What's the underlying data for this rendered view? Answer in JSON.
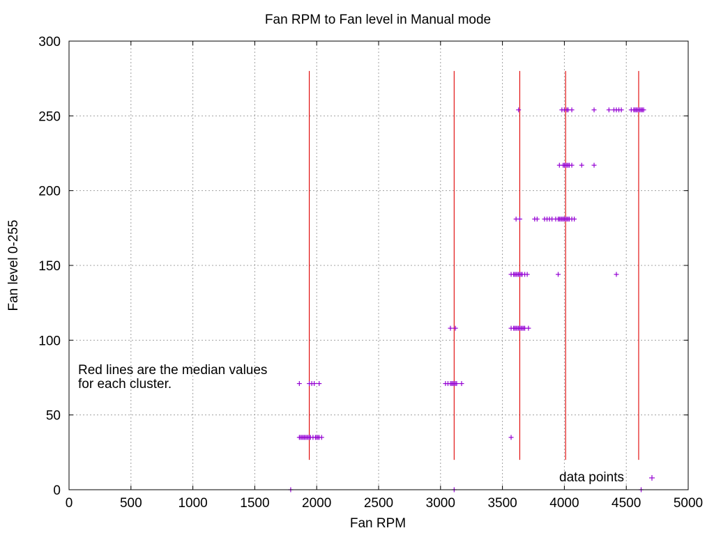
{
  "chart_data": {
    "type": "scatter",
    "title": "Fan RPM to Fan level in Manual mode",
    "xlabel": "Fan RPM",
    "ylabel": "Fan level 0-255",
    "xlim": [
      0,
      5000
    ],
    "ylim": [
      0,
      300
    ],
    "xticks": [
      0,
      500,
      1000,
      1500,
      2000,
      2500,
      3000,
      3500,
      4000,
      4500,
      5000
    ],
    "yticks": [
      0,
      50,
      100,
      150,
      200,
      250,
      300
    ],
    "grid": true,
    "legend": {
      "position": "bottom-right",
      "entries": [
        {
          "label": "data points",
          "marker": "+",
          "color": "#9400d3"
        }
      ]
    },
    "annotation": [
      "Red lines are the median values",
      "for each cluster."
    ],
    "colors": {
      "points": "#9400d3",
      "median_lines": "#e00000",
      "grid": "#a0a0a0"
    },
    "median_lines": {
      "x": [
        1940,
        3110,
        3640,
        4010,
        4600
      ],
      "y_range": [
        20,
        280
      ]
    },
    "series": [
      {
        "name": "data points",
        "points": [
          [
            1860,
            35
          ],
          [
            1870,
            35
          ],
          [
            1880,
            35
          ],
          [
            1890,
            35
          ],
          [
            1900,
            35
          ],
          [
            1910,
            35
          ],
          [
            1920,
            35
          ],
          [
            1930,
            35
          ],
          [
            1940,
            35
          ],
          [
            1950,
            35
          ],
          [
            1970,
            35
          ],
          [
            1990,
            35
          ],
          [
            2000,
            35
          ],
          [
            2010,
            35
          ],
          [
            2020,
            35
          ],
          [
            2040,
            35
          ],
          [
            1860,
            71
          ],
          [
            1940,
            71
          ],
          [
            1960,
            71
          ],
          [
            1980,
            71
          ],
          [
            2020,
            71
          ],
          [
            3040,
            71
          ],
          [
            3060,
            71
          ],
          [
            3080,
            71
          ],
          [
            3090,
            71
          ],
          [
            3100,
            71
          ],
          [
            3110,
            71
          ],
          [
            3120,
            71
          ],
          [
            3130,
            71
          ],
          [
            3170,
            71
          ],
          [
            3080,
            108
          ],
          [
            3120,
            108
          ],
          [
            3570,
            108
          ],
          [
            3590,
            108
          ],
          [
            3600,
            108
          ],
          [
            3610,
            108
          ],
          [
            3620,
            108
          ],
          [
            3630,
            108
          ],
          [
            3640,
            108
          ],
          [
            3650,
            108
          ],
          [
            3660,
            108
          ],
          [
            3670,
            108
          ],
          [
            3680,
            108
          ],
          [
            3710,
            108
          ],
          [
            3570,
            144
          ],
          [
            3590,
            144
          ],
          [
            3600,
            144
          ],
          [
            3610,
            144
          ],
          [
            3620,
            144
          ],
          [
            3630,
            144
          ],
          [
            3640,
            144
          ],
          [
            3650,
            144
          ],
          [
            3660,
            144
          ],
          [
            3680,
            144
          ],
          [
            3700,
            144
          ],
          [
            3950,
            144
          ],
          [
            4420,
            144
          ],
          [
            3610,
            181
          ],
          [
            3640,
            181
          ],
          [
            3760,
            181
          ],
          [
            3780,
            181
          ],
          [
            3840,
            181
          ],
          [
            3860,
            181
          ],
          [
            3880,
            181
          ],
          [
            3900,
            181
          ],
          [
            3930,
            181
          ],
          [
            3950,
            181
          ],
          [
            3960,
            181
          ],
          [
            3970,
            181
          ],
          [
            3980,
            181
          ],
          [
            3990,
            181
          ],
          [
            4000,
            181
          ],
          [
            4010,
            181
          ],
          [
            4020,
            181
          ],
          [
            4030,
            181
          ],
          [
            4040,
            181
          ],
          [
            4060,
            181
          ],
          [
            4080,
            181
          ],
          [
            3960,
            217
          ],
          [
            3990,
            217
          ],
          [
            4000,
            217
          ],
          [
            4010,
            217
          ],
          [
            4020,
            217
          ],
          [
            4030,
            217
          ],
          [
            4040,
            217
          ],
          [
            4060,
            217
          ],
          [
            4140,
            217
          ],
          [
            4240,
            217
          ],
          [
            3630,
            254
          ],
          [
            3980,
            254
          ],
          [
            4000,
            254
          ],
          [
            4020,
            254
          ],
          [
            4030,
            254
          ],
          [
            4060,
            254
          ],
          [
            4240,
            254
          ],
          [
            4360,
            254
          ],
          [
            4400,
            254
          ],
          [
            4420,
            254
          ],
          [
            4440,
            254
          ],
          [
            4460,
            254
          ],
          [
            4540,
            254
          ],
          [
            4560,
            254
          ],
          [
            4570,
            254
          ],
          [
            4580,
            254
          ],
          [
            4590,
            254
          ],
          [
            4600,
            254
          ],
          [
            4610,
            254
          ],
          [
            4620,
            254
          ],
          [
            4630,
            254
          ],
          [
            4640,
            254
          ],
          [
            3570,
            35
          ],
          [
            1790,
            0
          ],
          [
            3110,
            0
          ],
          [
            4620,
            0
          ]
        ]
      }
    ]
  }
}
